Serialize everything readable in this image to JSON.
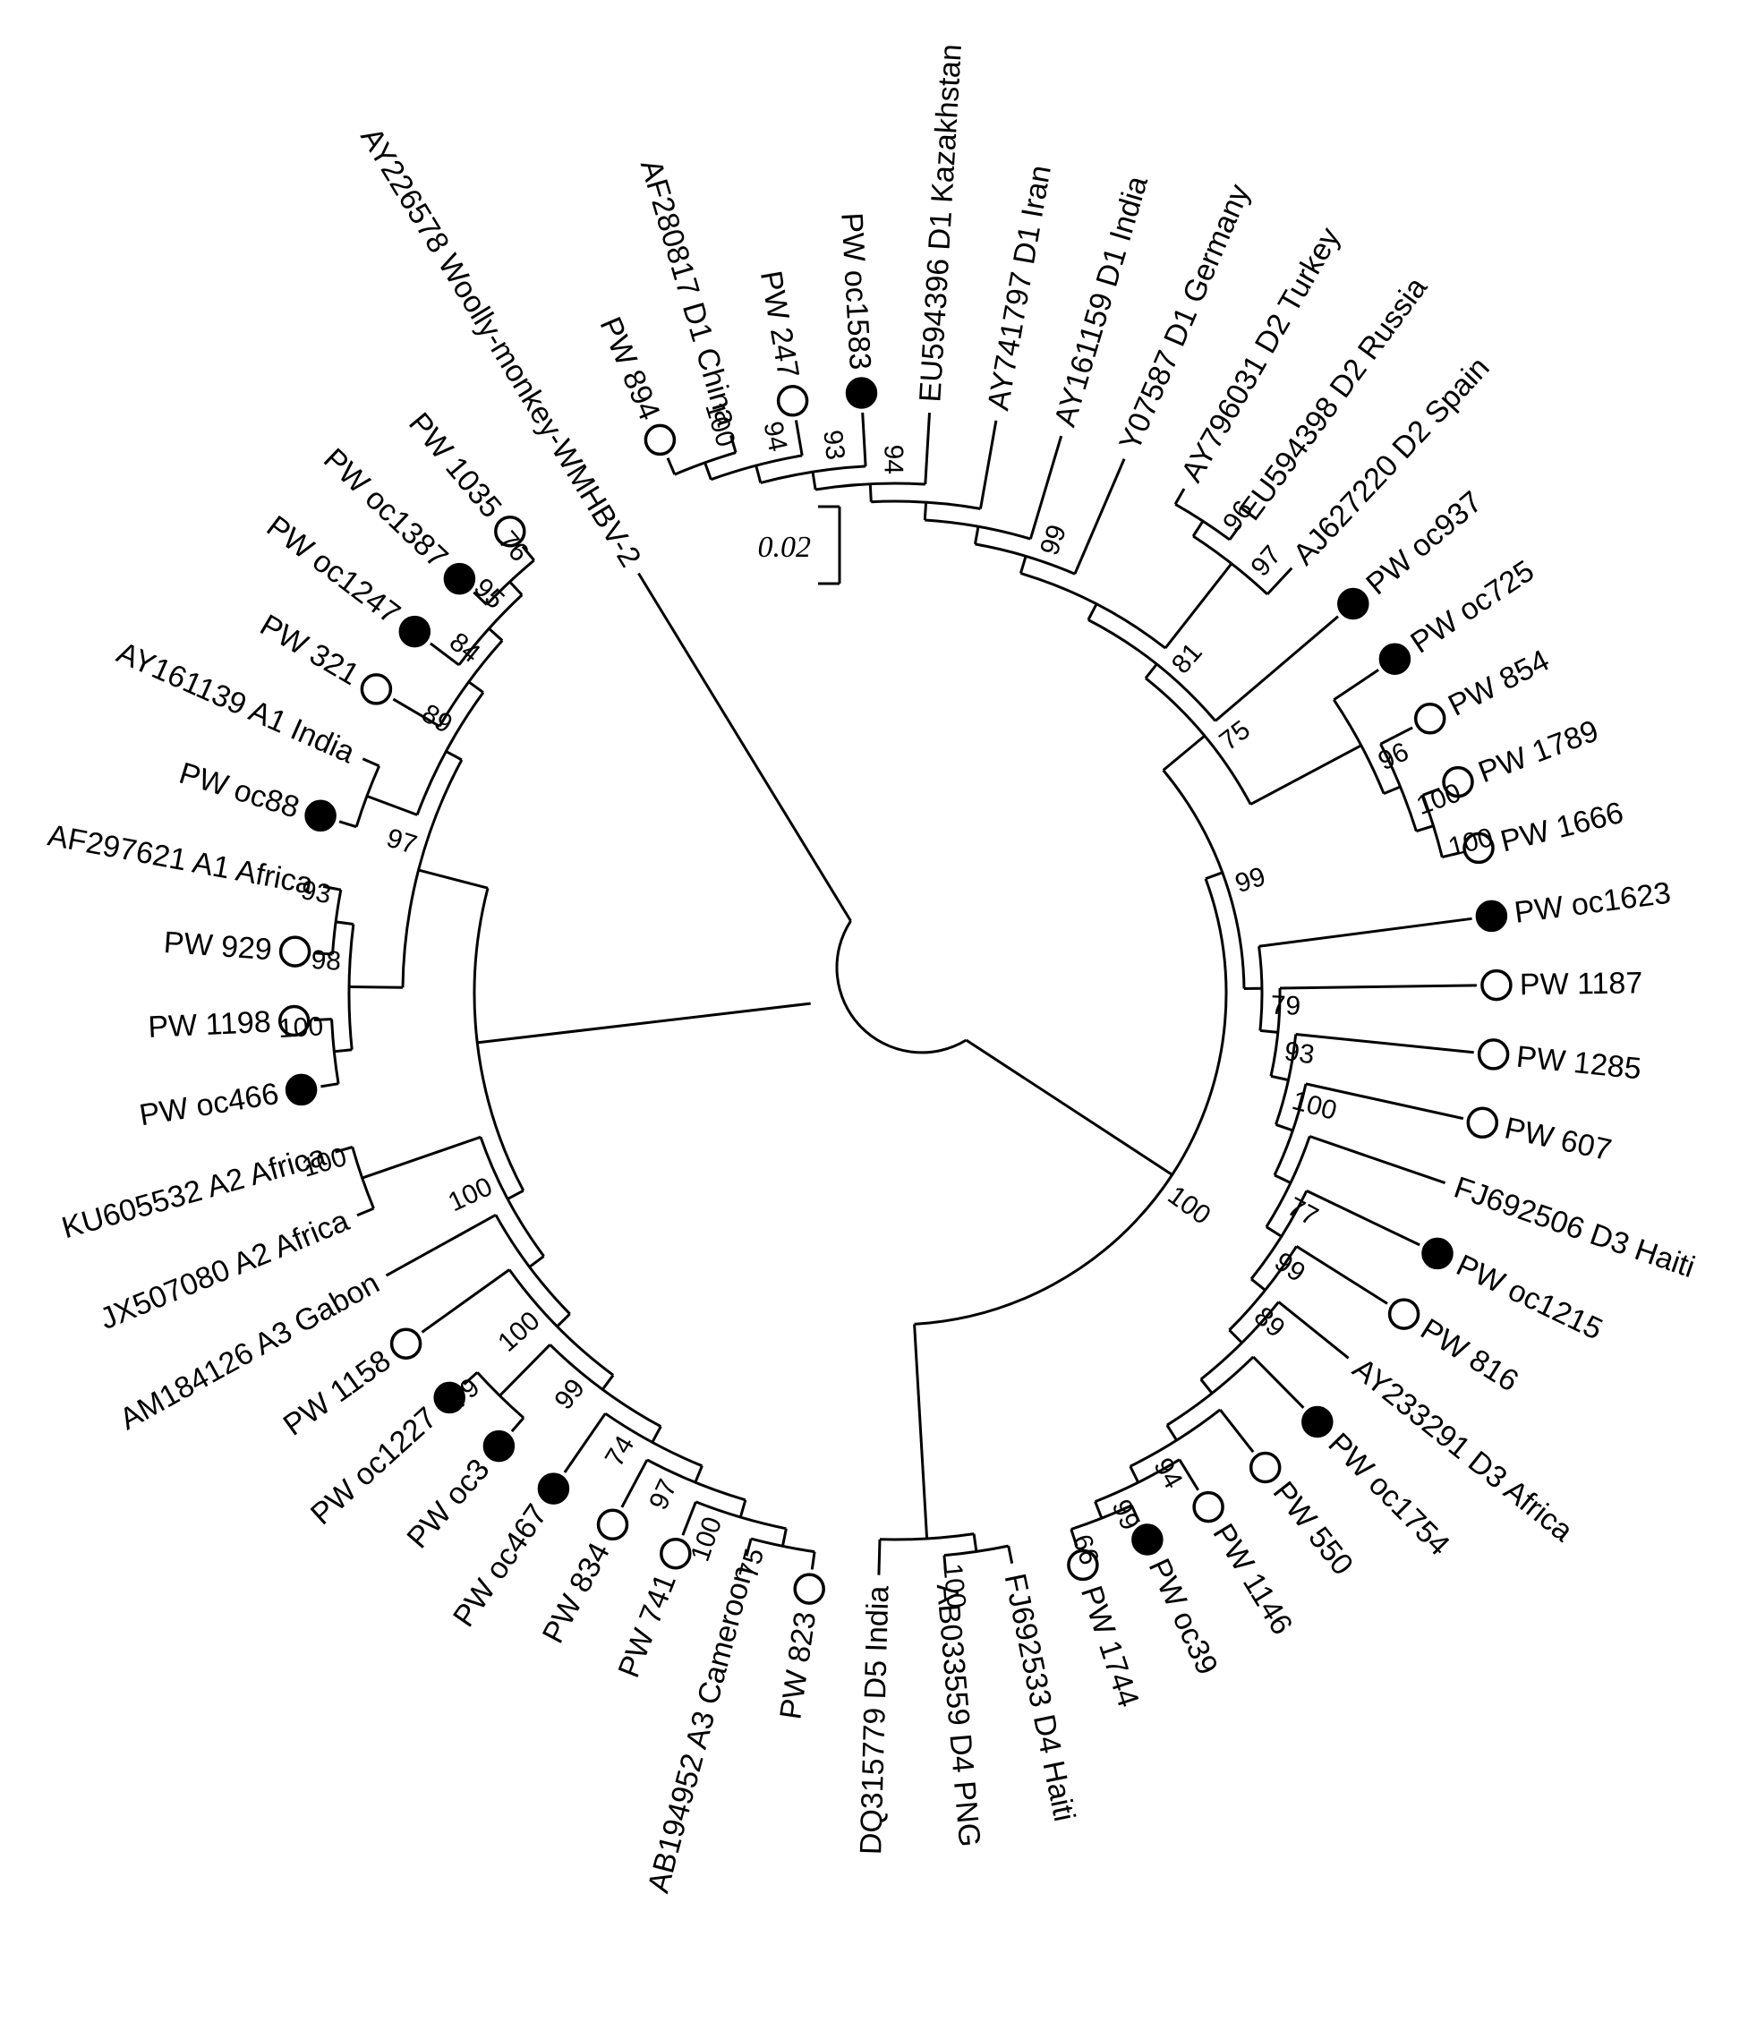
{
  "figure": {
    "scale_bar_label": "0.02",
    "background_color": "#ffffff",
    "line_color": "#000000",
    "marker_open_color": "#ffffff",
    "marker_filled_color": "#000000"
  },
  "outgroup": {
    "name": "AY226578 Woolly-monkey-WMHBV-2",
    "marker": null
  },
  "tree": {
    "children": [
      {
        "bs": 100,
        "children": [
          {
            "bs": 99,
            "children": [
              {
                "bs": 75,
                "children": [
                  {
                    "bs": 81,
                    "children": [
                      {
                        "children": [
                          {
                            "bs": 99,
                            "children": [
                              {
                                "children": [
                                  {
                                    "children": [
                                      {
                                        "bs": 94,
                                        "children": [
                                          {
                                            "bs": 93,
                                            "children": [
                                              {
                                                "bs": 94,
                                                "children": [
                                                  {
                                                    "bs": 100,
                                                    "children": [
                                                      {
                                                        "name": "PW 894",
                                                        "marker": "open"
                                                      },
                                                      {
                                                        "name": "AF280817 D1 China",
                                                        "marker": null
                                                      }
                                                    ]
                                                  },
                                                  {
                                                    "name": "PW 247",
                                                    "marker": "open"
                                                  }
                                                ]
                                              },
                                              {
                                                "name": "PW oc1583",
                                                "marker": "filled"
                                              }
                                            ]
                                          },
                                          {
                                            "name": "EU594396 D1 Kazakhstan",
                                            "marker": null
                                          }
                                        ]
                                      },
                                      {
                                        "name": "AY741797 D1 Iran",
                                        "marker": null
                                      }
                                    ]
                                  },
                                  {
                                    "name": "AY161159 D1 India",
                                    "marker": null
                                  }
                                ]
                              },
                              {
                                "name": "Y07587 D1 Germany",
                                "marker": null
                              }
                            ]
                          },
                          {
                            "bs": 97,
                            "children": [
                              {
                                "bs": 96,
                                "children": [
                                  {
                                    "name": "AY796031 D2 Turkey",
                                    "marker": null
                                  },
                                  {
                                    "name": "EU594398 D2 Russia",
                                    "marker": null
                                  }
                                ]
                              },
                              {
                                "name": "AJ627220 D2 Spain",
                                "marker": null
                              }
                            ]
                          }
                        ]
                      },
                      {
                        "name": "PW oc937",
                        "marker": "filled"
                      }
                    ]
                  },
                  {
                    "bs": 96,
                    "children": [
                      {
                        "name": "PW oc725",
                        "marker": "filled"
                      },
                      {
                        "bs": 100,
                        "children": [
                          {
                            "name": "PW 854",
                            "marker": "open"
                          },
                          {
                            "bs": 100,
                            "children": [
                              {
                                "name": "PW 1789",
                                "marker": "open"
                              },
                              {
                                "name": "PW 1666",
                                "marker": "open"
                              }
                            ]
                          }
                        ]
                      }
                    ]
                  }
                ]
              },
              {
                "bs": 79,
                "children": [
                  {
                    "name": "PW oc1623",
                    "marker": "filled"
                  },
                  {
                    "bs": 93,
                    "children": [
                      {
                        "name": "PW 1187",
                        "marker": "open"
                      },
                      {
                        "bs": 100,
                        "children": [
                          {
                            "name": "PW 1285",
                            "marker": "open"
                          },
                          {
                            "children": [
                              {
                                "name": "PW 607",
                                "marker": "open"
                              },
                              {
                                "bs": 77,
                                "children": [
                                  {
                                    "name": "FJ692506 D3 Haiti",
                                    "marker": null
                                  },
                                  {
                                    "bs": 99,
                                    "children": [
                                      {
                                        "name": "PW oc1215",
                                        "marker": "filled"
                                      },
                                      {
                                        "bs": 89,
                                        "children": [
                                          {
                                            "name": "PW 816",
                                            "marker": "open"
                                          },
                                          {
                                            "children": [
                                              {
                                                "name": "AY233291 D3 Africa",
                                                "marker": null
                                              },
                                              {
                                                "children": [
                                                  {
                                                    "name": "PW oc1754",
                                                    "marker": "filled"
                                                  },
                                                  {
                                                    "bs": 94,
                                                    "children": [
                                                      {
                                                        "name": "PW 550",
                                                        "marker": "open"
                                                      },
                                                      {
                                                        "bs": 99,
                                                        "children": [
                                                          {
                                                            "name": "PW 1146",
                                                            "marker": "open"
                                                          },
                                                          {
                                                            "bs": 66,
                                                            "children": [
                                                              {
                                                                "name": "PW oc39",
                                                                "marker": "filled"
                                                              },
                                                              {
                                                                "name": "PW 1744",
                                                                "marker": "open"
                                                              }
                                                            ]
                                                          }
                                                        ]
                                                      }
                                                    ]
                                                  }
                                                ]
                                              }
                                            ]
                                          }
                                        ]
                                      }
                                    ]
                                  }
                                ]
                              }
                            ]
                          }
                        ]
                      }
                    ]
                  }
                ]
              }
            ]
          },
          {
            "children": [
              {
                "bs": 100,
                "children": [
                  {
                    "name": "FJ692533 D4 Haiti",
                    "marker": null
                  },
                  {
                    "name": "AB033559 D4 PNG",
                    "marker": null
                  }
                ]
              },
              {
                "name": "DQ315779 D5 India",
                "marker": null
              }
            ]
          }
        ]
      },
      {
        "children": [
          {
            "bs": 100,
            "children": [
              {
                "children": [
                  {
                    "bs": 100,
                    "children": [
                      {
                        "bs": 99,
                        "children": [
                          {
                            "bs": 74,
                            "children": [
                              {
                                "bs": 97,
                                "children": [
                                  {
                                    "bs": 100,
                                    "children": [
                                      {
                                        "bs": 75,
                                        "children": [
                                          {
                                            "name": "PW 823",
                                            "marker": "open"
                                          },
                                          {
                                            "name": "AB194952 A3 Cameroon",
                                            "marker": null
                                          }
                                        ]
                                      },
                                      {
                                        "name": "PW 741",
                                        "marker": "open"
                                      }
                                    ]
                                  },
                                  {
                                    "name": "PW 834",
                                    "marker": "open"
                                  }
                                ]
                              },
                              {
                                "name": "PW oc467",
                                "marker": "filled"
                              }
                            ]
                          },
                          {
                            "bs": 79,
                            "children": [
                              {
                                "name": "PW oc3",
                                "marker": "filled"
                              },
                              {
                                "name": "PW oc1227",
                                "marker": "filled"
                              }
                            ]
                          }
                        ]
                      },
                      {
                        "name": "PW 1158",
                        "marker": "open"
                      }
                    ]
                  },
                  {
                    "name": "AM184126 A3 Gabon",
                    "marker": null
                  }
                ]
              },
              {
                "bs": 100,
                "children": [
                  {
                    "name": "JX507080 A2 Africa",
                    "marker": null
                  },
                  {
                    "name": "KU605532 A2 Africa",
                    "marker": null
                  }
                ]
              }
            ]
          },
          {
            "bs": 97,
            "children": [
              {
                "bs": 98,
                "children": [
                  {
                    "bs": 100,
                    "children": [
                      {
                        "name": "PW oc466",
                        "marker": "filled"
                      },
                      {
                        "name": "PW 1198",
                        "marker": "open"
                      }
                    ]
                  },
                  {
                    "bs": 93,
                    "children": [
                      {
                        "name": "PW 929",
                        "marker": "open"
                      },
                      {
                        "name": "AF297621 A1 Africa",
                        "marker": null
                      }
                    ]
                  }
                ]
              },
              {
                "bs": 89,
                "children": [
                  {
                    "children": [
                      {
                        "name": "PW oc88",
                        "marker": "filled"
                      },
                      {
                        "name": "AY161139 A1 India",
                        "marker": null
                      }
                    ]
                  },
                  {
                    "bs": 84,
                    "children": [
                      {
                        "name": "PW 321",
                        "marker": "open"
                      },
                      {
                        "bs": 95,
                        "children": [
                          {
                            "name": "PW oc1247",
                            "marker": "filled"
                          },
                          {
                            "bs": 76,
                            "children": [
                              {
                                "name": "PW oc1387",
                                "marker": "filled"
                              },
                              {
                                "name": "PW 1035",
                                "marker": "open"
                              }
                            ]
                          }
                        ]
                      }
                    ]
                  }
                ]
              }
            ]
          }
        ]
      }
    ]
  }
}
